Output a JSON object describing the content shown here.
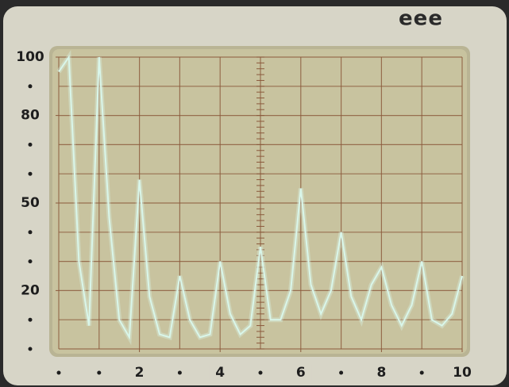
{
  "brand": "eee",
  "chart_data": {
    "type": "line",
    "x": [
      0,
      0.25,
      0.5,
      0.75,
      1,
      1.25,
      1.5,
      1.75,
      2,
      2.25,
      2.5,
      2.75,
      3,
      3.25,
      3.5,
      3.75,
      4,
      4.25,
      4.5,
      4.75,
      5,
      5.25,
      5.5,
      5.75,
      6,
      6.25,
      6.5,
      6.75,
      7,
      7.25,
      7.5,
      7.75,
      8,
      8.25,
      8.5,
      8.75,
      9,
      9.25,
      9.5,
      9.75,
      10
    ],
    "series": [
      {
        "color": "#d9f6ea",
        "values": [
          95,
          100,
          30,
          8,
          100,
          45,
          10,
          4,
          58,
          18,
          5,
          4,
          25,
          10,
          4,
          5,
          30,
          12,
          5,
          8,
          35,
          10,
          10,
          20,
          55,
          22,
          12,
          20,
          40,
          18,
          10,
          22,
          28,
          15,
          8,
          15,
          30,
          10,
          8,
          12,
          25
        ]
      }
    ],
    "xlim": [
      0,
      10
    ],
    "xticks": [
      2,
      4,
      6,
      8,
      10
    ],
    "ylim": [
      0,
      100
    ],
    "yticks": [
      20,
      50,
      80,
      100
    ],
    "grid": true
  }
}
